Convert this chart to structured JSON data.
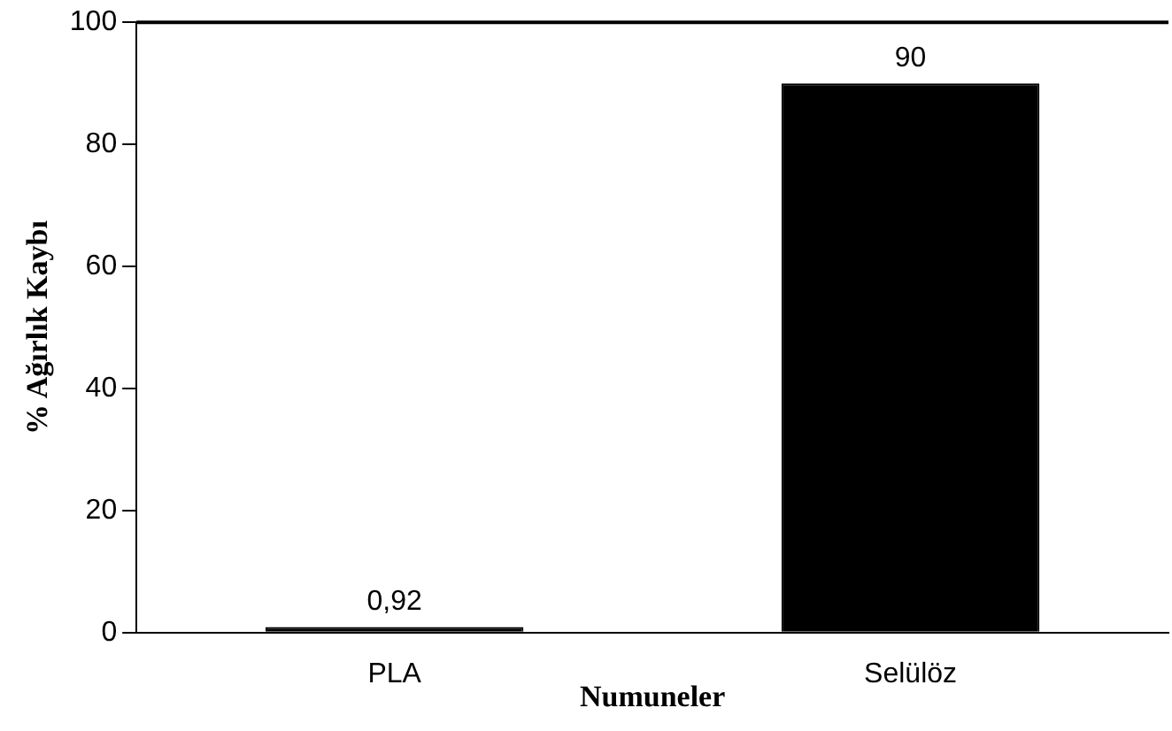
{
  "chart_data": {
    "type": "bar",
    "xlabel": "Numuneler",
    "ylabel": "% Ağırlık Kaybı",
    "categories": [
      "PLA",
      "Selülöz"
    ],
    "values": [
      0.92,
      90
    ],
    "color": "#000000",
    "value_labels": [
      "0,92",
      "90"
    ],
    "ylim": [
      0,
      100
    ],
    "yticks": [
      0,
      20,
      40,
      60,
      80,
      100
    ],
    "grid": false,
    "legend": false
  }
}
